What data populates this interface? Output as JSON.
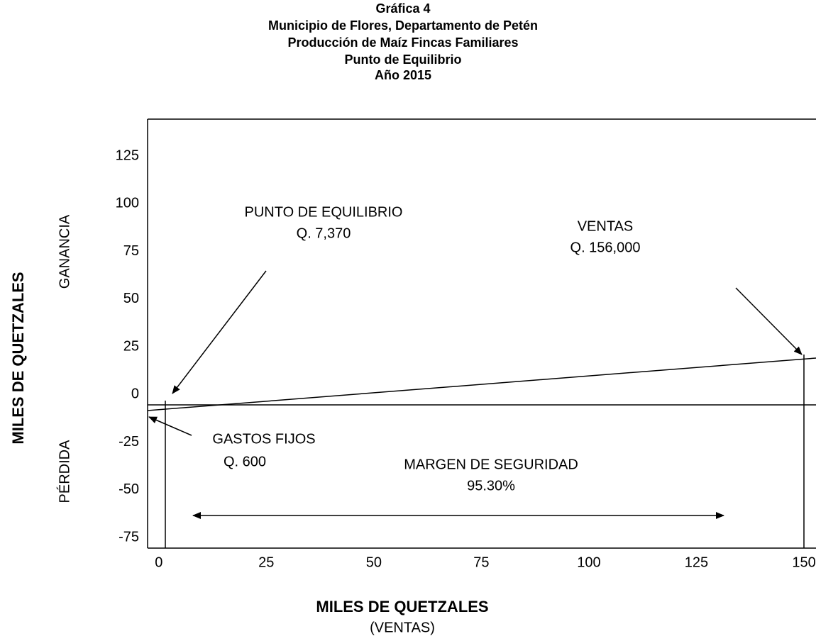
{
  "chart_data": {
    "type": "break-even",
    "title": [
      "Gráfica 4",
      "Municipio de Flores, Departamento de Petén",
      "Producción de Maíz Fincas Familiares",
      "Punto de Equilibrio",
      "Año 2015"
    ],
    "y_label": "MILES DE QUETZALES",
    "y_upper_label": "GANANCIA",
    "y_lower_label": "PÉRDIDA",
    "x_label": "MILES DE QUETZALES",
    "x_sublabel": "(VENTAS)",
    "xlim": [
      -2.6,
      152.8
    ],
    "ylim": [
      -75,
      150
    ],
    "xticks": [
      0,
      25,
      50,
      75,
      100,
      125,
      150
    ],
    "yticks": [
      125,
      100,
      75,
      50,
      25,
      0,
      -25,
      -50,
      -75
    ],
    "annotations": {
      "break_even": [
        "PUNTO DE EQUILIBRIO",
        "Q. 7,370"
      ],
      "sales": [
        "VENTAS",
        "Q. 156,000"
      ],
      "fixed_costs": [
        "GASTOS FIJOS",
        "Q. 600"
      ],
      "safety_margin": [
        "MARGEN DE SEGURIDAD",
        "95.30%"
      ]
    }
  }
}
